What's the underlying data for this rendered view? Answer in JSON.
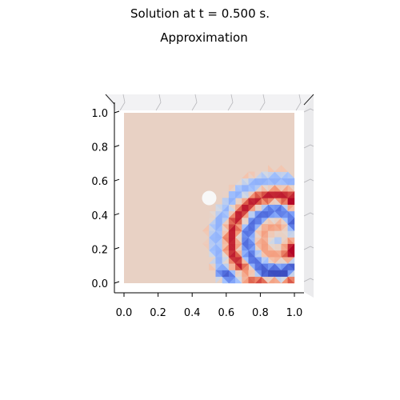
{
  "figure": {
    "suptitle": "Solution at t = 0.500 s.",
    "axes_title": "Approximation"
  },
  "chart_data": {
    "type": "heatmap",
    "title": "Approximation",
    "suptitle": "Solution at t = 0.500 s.",
    "projection": "3d-surface-top-view",
    "colormap": "coolwarm",
    "xlabel": "",
    "ylabel": "",
    "xlim": [
      0.0,
      1.0
    ],
    "ylim": [
      0.0,
      1.0
    ],
    "x_ticks": [
      "0.0",
      "0.2",
      "0.4",
      "0.6",
      "0.8",
      "1.0"
    ],
    "y_ticks": [
      "0.0",
      "0.2",
      "0.4",
      "0.6",
      "0.8",
      "1.0"
    ],
    "obstacle": {
      "cx": 0.5,
      "cy": 0.5,
      "r": 0.04
    },
    "wave_sources": [
      {
        "x": 0.9,
        "y": 0.25
      }
    ],
    "colors": {
      "background_level": "#e8d1c4",
      "warm_peak": "#b40426",
      "cool_trough": "#3b4cc0",
      "pane": "#f2f2f4"
    }
  }
}
